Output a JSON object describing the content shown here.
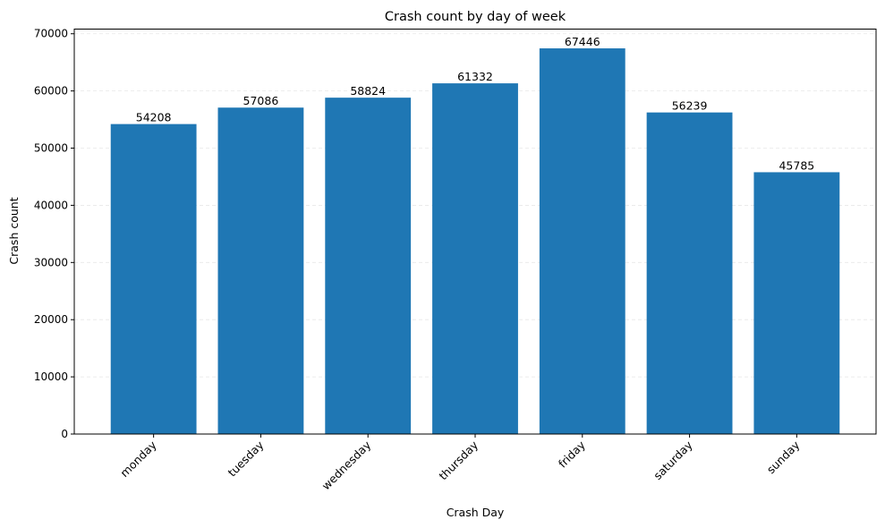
{
  "chart_data": {
    "type": "bar",
    "title": "Crash count by day of week",
    "xlabel": "Crash Day",
    "ylabel": "Crash count",
    "categories": [
      "monday",
      "tuesday",
      "wednesday",
      "thursday",
      "friday",
      "saturday",
      "sunday"
    ],
    "values": [
      54208,
      57086,
      58824,
      61332,
      67446,
      56239,
      45785
    ],
    "data_labels": [
      "54208",
      "57086",
      "58824",
      "61332",
      "67446",
      "56239",
      "45785"
    ],
    "ylim": [
      0,
      70818
    ],
    "yticks": [
      0,
      10000,
      20000,
      30000,
      40000,
      50000,
      60000,
      70000
    ],
    "ytick_labels": [
      "0",
      "10000",
      "20000",
      "30000",
      "40000",
      "50000",
      "60000",
      "70000"
    ],
    "grid": "y, dashed",
    "bar_color": "#1f77b4"
  }
}
